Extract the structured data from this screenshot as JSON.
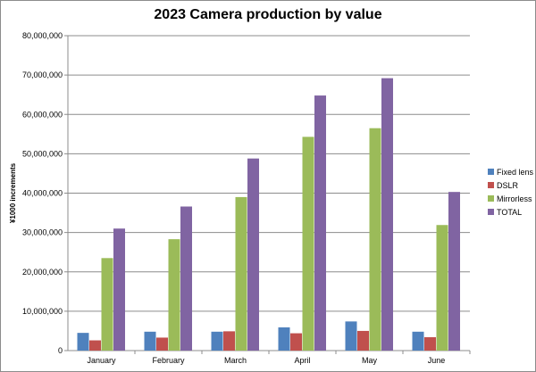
{
  "chart_data": {
    "type": "bar",
    "title": "2023 Camera production by value",
    "xlabel": "",
    "ylabel": "¥1000 increments",
    "ylim": [
      0,
      80000000
    ],
    "yticks": [
      "0",
      "10,000,000",
      "20,000,000",
      "30,000,000",
      "40,000,000",
      "50,000,000",
      "60,000,000",
      "70,000,000",
      "80,000,000"
    ],
    "grid": true,
    "legend": "right",
    "categories": [
      "January",
      "February",
      "March",
      "April",
      "May",
      "June"
    ],
    "series": [
      {
        "name": "Fixed lens",
        "color": "#4f81bd",
        "values": [
          4500000,
          4800000,
          4800000,
          5900000,
          7400000,
          4800000
        ]
      },
      {
        "name": "DSLR",
        "color": "#c0504d",
        "values": [
          2600000,
          3300000,
          4900000,
          4400000,
          5000000,
          3400000
        ]
      },
      {
        "name": "Mirrorless",
        "color": "#9bbb59",
        "values": [
          23500000,
          28300000,
          39000000,
          54300000,
          56500000,
          31900000
        ]
      },
      {
        "name": "TOTAL",
        "color": "#8064a2",
        "values": [
          31000000,
          36600000,
          48800000,
          64800000,
          69200000,
          40300000
        ]
      }
    ]
  }
}
